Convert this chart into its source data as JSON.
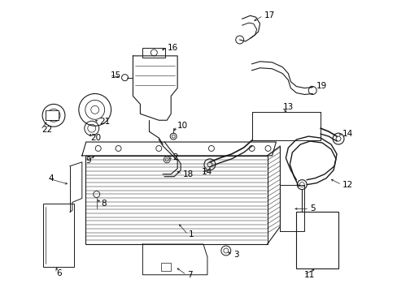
{
  "background_color": "#ffffff",
  "line_color": "#1a1a1a",
  "label_color": "#000000",
  "figsize": [
    4.89,
    3.6
  ],
  "dpi": 100,
  "font_size": 7.5
}
